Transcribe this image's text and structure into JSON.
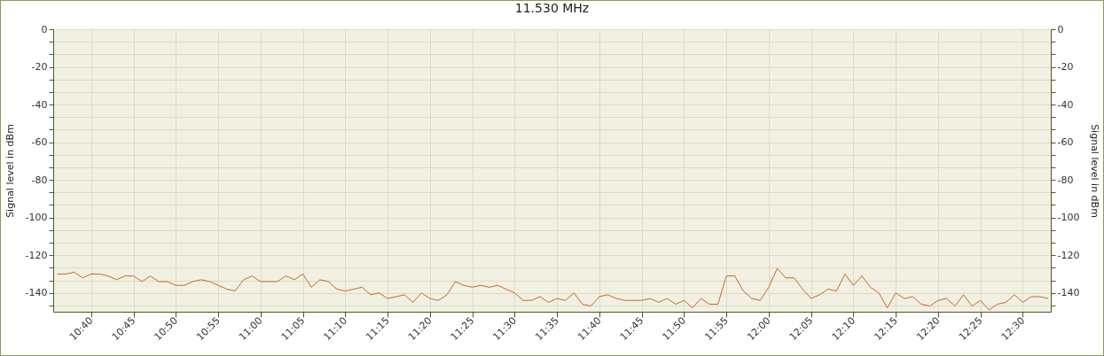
{
  "chart_data": {
    "type": "line",
    "title": "11.530 MHz",
    "ylabel": "Signal level in dBm",
    "y2label": "Signal level in dBm",
    "x": [
      10.6,
      10.6167,
      10.6333,
      10.65,
      10.6667,
      10.6833,
      10.7,
      10.7167,
      10.7333,
      10.75,
      10.7667,
      10.7833,
      10.8,
      10.8167,
      10.8333,
      10.85,
      10.8667,
      10.8833,
      10.9,
      10.9167,
      10.9333,
      10.95,
      10.9667,
      10.9833,
      11,
      11.0167,
      11.0333,
      11.05,
      11.0667,
      11.0833,
      11.1,
      11.1167,
      11.1333,
      11.15,
      11.1667,
      11.1833,
      11.2,
      11.2167,
      11.2333,
      11.25,
      11.2667,
      11.2833,
      11.3,
      11.3167,
      11.3333,
      11.35,
      11.3667,
      11.3833,
      11.4,
      11.4167,
      11.4333,
      11.45,
      11.4667,
      11.4833,
      11.5,
      11.5167,
      11.5333,
      11.55,
      11.5667,
      11.5833,
      11.6,
      11.6167,
      11.6333,
      11.65,
      11.6667,
      11.6833,
      11.7,
      11.7167,
      11.7333,
      11.75,
      11.7667,
      11.7833,
      11.8,
      11.8167,
      11.8333,
      11.85,
      11.8667,
      11.8833,
      11.9,
      11.9167,
      11.9333,
      11.95,
      11.9667,
      11.9833,
      12,
      12.0167,
      12.0333,
      12.05,
      12.0667,
      12.0833,
      12.1,
      12.1167,
      12.1333,
      12.15,
      12.1667,
      12.1833,
      12.2,
      12.2167,
      12.2333,
      12.25,
      12.2667,
      12.2833,
      12.3,
      12.3167,
      12.3333,
      12.35,
      12.3667,
      12.3833,
      12.4,
      12.4167,
      12.4333,
      12.45,
      12.4667,
      12.4833,
      12.5,
      12.5167,
      12.5333,
      12.55
    ],
    "series": [
      {
        "color": "#c46a2c",
        "values": [
          -130,
          -130,
          -129,
          -132,
          -130,
          -130,
          -131,
          -133,
          -131,
          -131,
          -134,
          -131,
          -134,
          -134,
          -136,
          -136,
          -134,
          -133,
          -134,
          -136,
          -138,
          -139,
          -133,
          -131,
          -134,
          -134,
          -134,
          -131,
          -133,
          -130,
          -137,
          -133,
          -134,
          -138,
          -139,
          -138,
          -137,
          -141,
          -140,
          -143,
          -142,
          -141,
          -145,
          -140,
          -143,
          -144,
          -141,
          -134,
          -136,
          -137,
          -136,
          -137,
          -136,
          -138,
          -140,
          -144,
          -144,
          -142,
          -145,
          -143,
          -144,
          -140,
          -146,
          -147,
          -142,
          -141,
          -143,
          -144,
          -144,
          -144,
          -143,
          -145,
          -143,
          -146,
          -144,
          -148,
          -143,
          -146,
          -146,
          -131,
          -131,
          -139,
          -143,
          -144,
          -137,
          -127,
          -132,
          -132,
          -138,
          -143,
          -141,
          -138,
          -139,
          -130,
          -136,
          -131,
          -137,
          -140,
          -148,
          -140,
          -143,
          -142,
          -146,
          -147,
          -144,
          -143,
          -147,
          -141,
          -147,
          -144,
          -149,
          -146,
          -145,
          -141,
          -145,
          -142,
          -142,
          -143
        ]
      }
    ],
    "xlim": [
      10.592,
      12.555
    ],
    "xticks": [
      {
        "value": 10.6667,
        "label": "10:40"
      },
      {
        "value": 10.75,
        "label": "10:45"
      },
      {
        "value": 10.8333,
        "label": "10:50"
      },
      {
        "value": 10.9167,
        "label": "10:55"
      },
      {
        "value": 11,
        "label": "11:00"
      },
      {
        "value": 11.0833,
        "label": "11:05"
      },
      {
        "value": 11.1667,
        "label": "11:10"
      },
      {
        "value": 11.25,
        "label": "11:15"
      },
      {
        "value": 11.3333,
        "label": "11:20"
      },
      {
        "value": 11.4167,
        "label": "11:25"
      },
      {
        "value": 11.5,
        "label": "11:30"
      },
      {
        "value": 11.5833,
        "label": "11:35"
      },
      {
        "value": 11.6667,
        "label": "11:40"
      },
      {
        "value": 11.75,
        "label": "11:45"
      },
      {
        "value": 11.8333,
        "label": "11:50"
      },
      {
        "value": 11.9167,
        "label": "11:55"
      },
      {
        "value": 12,
        "label": "12:00"
      },
      {
        "value": 12.0833,
        "label": "12:05"
      },
      {
        "value": 12.1667,
        "label": "12:10"
      },
      {
        "value": 12.25,
        "label": "12:15"
      },
      {
        "value": 12.3333,
        "label": "12:20"
      },
      {
        "value": 12.4167,
        "label": "12:25"
      },
      {
        "value": 12.5,
        "label": "12:30"
      }
    ],
    "ylim": [
      -150,
      0
    ],
    "yticks": [
      0,
      {
        "value": -6.667,
        "label": null
      },
      {
        "value": -13.333,
        "label": null
      },
      -20,
      {
        "value": -26.667,
        "label": null
      },
      {
        "value": -33.333,
        "label": null
      },
      -40,
      {
        "value": -46.667,
        "label": null
      },
      {
        "value": -53.333,
        "label": null
      },
      -60,
      {
        "value": -66.667,
        "label": null
      },
      {
        "value": -73.333,
        "label": null
      },
      -80,
      {
        "value": -86.667,
        "label": null
      },
      {
        "value": -93.333,
        "label": null
      },
      -100,
      {
        "value": -106.667,
        "label": null
      },
      {
        "value": -113.333,
        "label": null
      },
      -120,
      {
        "value": -126.667,
        "label": null
      },
      {
        "value": -133.333,
        "label": null
      },
      -140,
      {
        "value": -146.667,
        "label": null
      }
    ],
    "y2lim": [
      -150,
      0
    ],
    "y2ticks": [
      0,
      {
        "value": -6.667,
        "label": null
      },
      {
        "value": -13.333,
        "label": null
      },
      -20,
      {
        "value": -26.667,
        "label": null
      },
      {
        "value": -33.333,
        "label": null
      },
      -40,
      {
        "value": -46.667,
        "label": null
      },
      {
        "value": -53.333,
        "label": null
      },
      -60,
      {
        "value": -66.667,
        "label": null
      },
      {
        "value": -73.333,
        "label": null
      },
      -80,
      {
        "value": -86.667,
        "label": null
      },
      {
        "value": -93.333,
        "label": null
      },
      -100,
      {
        "value": -106.667,
        "label": null
      },
      {
        "value": -113.333,
        "label": null
      },
      -120,
      {
        "value": -126.667,
        "label": null
      },
      {
        "value": -133.333,
        "label": null
      },
      -140,
      {
        "value": -146.667,
        "label": null
      }
    ],
    "grid": true,
    "marker": "none",
    "line_style": "solid"
  }
}
